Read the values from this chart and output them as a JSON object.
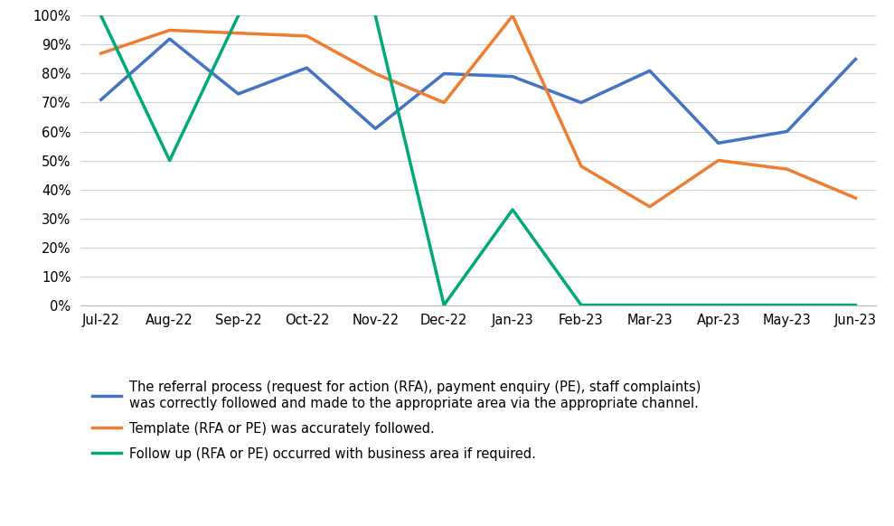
{
  "months": [
    "Jul-22",
    "Aug-22",
    "Sep-22",
    "Oct-22",
    "Nov-22",
    "Dec-22",
    "Jan-23",
    "Feb-23",
    "Mar-23",
    "Apr-23",
    "May-23",
    "Jun-23"
  ],
  "blue_series": [
    71,
    92,
    73,
    82,
    61,
    80,
    79,
    70,
    81,
    56,
    60,
    85
  ],
  "orange_series": [
    87,
    95,
    94,
    93,
    80,
    70,
    100,
    48,
    34,
    50,
    47,
    37
  ],
  "green_series": [
    100,
    50,
    100,
    null,
    100,
    0,
    33,
    0,
    0,
    0,
    0,
    0
  ],
  "blue_color": "#4472C4",
  "orange_color": "#ED7D31",
  "green_color": "#00A87A",
  "line_width": 2.5,
  "ylim": [
    0,
    100
  ],
  "yticks": [
    0,
    10,
    20,
    30,
    40,
    50,
    60,
    70,
    80,
    90,
    100
  ],
  "legend_labels": [
    "The referral process (request for action (RFA), payment enquiry (PE), staff complaints)\nwas correctly followed and made to the appropriate area via the appropriate channel.",
    "Template (RFA or PE) was accurately followed.",
    "Follow up (RFA or PE) occurred with business area if required."
  ],
  "bg_color": "#FFFFFF",
  "grid_color": "#D0D0D0"
}
